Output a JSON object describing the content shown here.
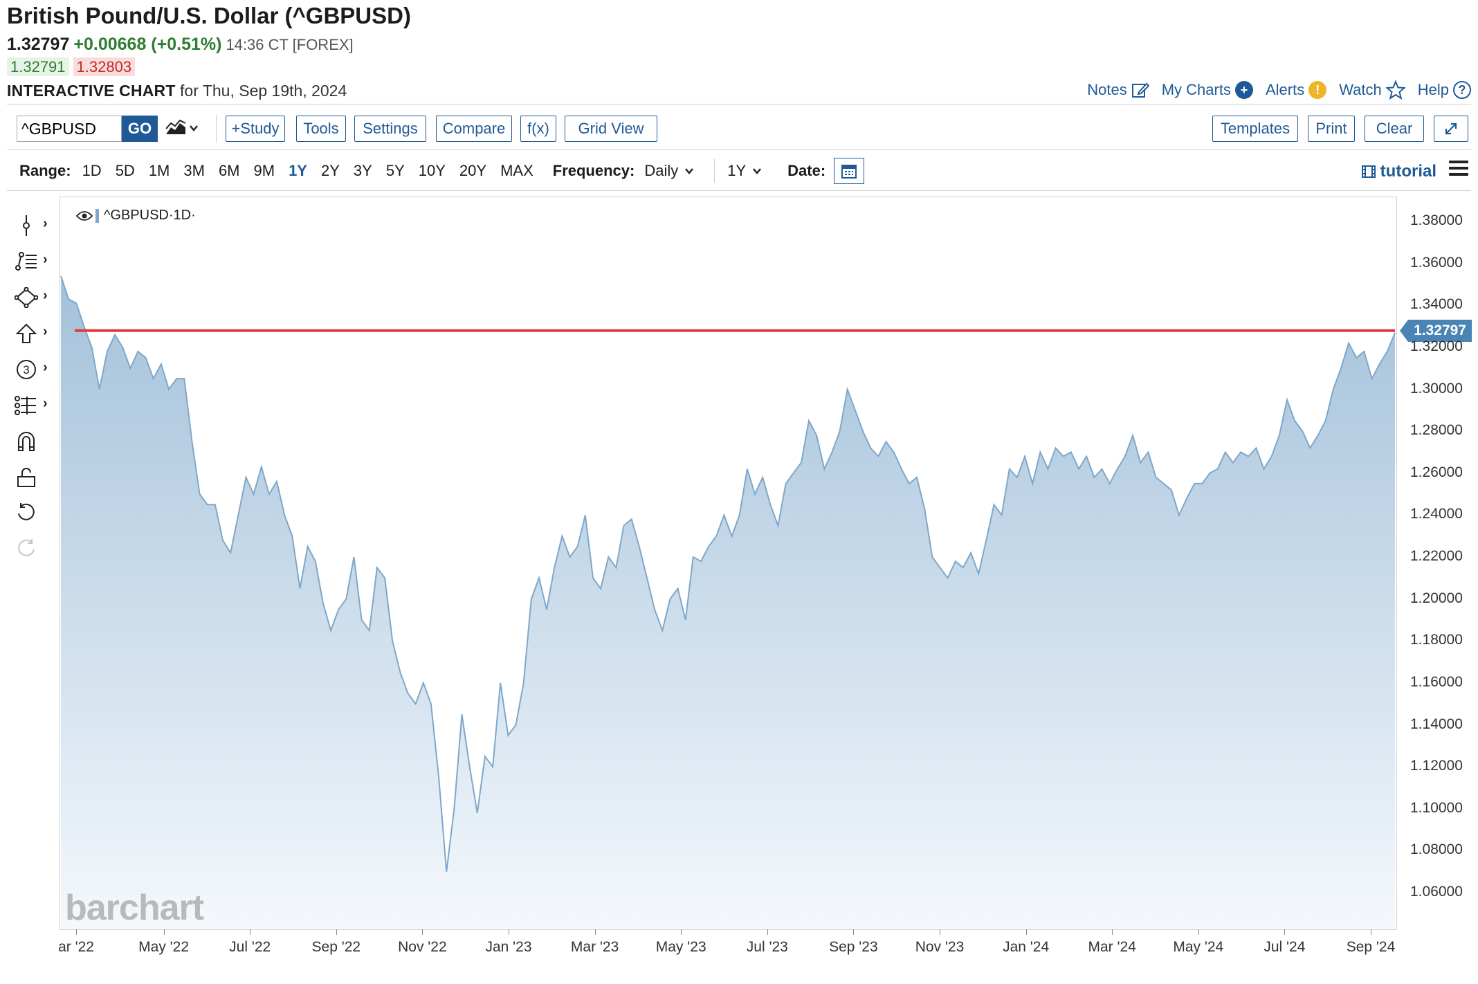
{
  "header": {
    "title": "British Pound/U.S. Dollar (^GBPUSD)",
    "last": "1.32797",
    "change": "+0.00668 (+0.51%)",
    "time": "14:36 CT [FOREX]",
    "bid": "1.32791",
    "ask": "1.32803",
    "chart_label": "INTERACTIVE CHART",
    "chart_date": "for Thu, Sep 19th, 2024"
  },
  "toplinks": {
    "notes": "Notes",
    "mycharts": "My Charts",
    "alerts": "Alerts",
    "watch": "Watch",
    "help": "Help"
  },
  "toolbar": {
    "symbol_value": "^GBPUSD",
    "go": "GO",
    "study": "+Study",
    "tools": "Tools",
    "settings": "Settings",
    "compare": "Compare",
    "fx": "f(x)",
    "grid": "Grid View",
    "templates": "Templates",
    "print": "Print",
    "clear": "Clear"
  },
  "range": {
    "label": "Range:",
    "options": [
      "1D",
      "5D",
      "1M",
      "3M",
      "6M",
      "9M",
      "1Y",
      "2Y",
      "3Y",
      "5Y",
      "10Y",
      "20Y",
      "MAX"
    ],
    "active": "1Y",
    "frequency_label": "Frequency:",
    "frequency_value": "Daily",
    "period_value": "1Y",
    "date_label": "Date:",
    "tutorial": "tutorial"
  },
  "colors": {
    "accent": "#1f5a96",
    "area_line": "#7ea7c9",
    "area_top": "#a3c1da",
    "area_bottom": "#f4f8fc",
    "price_line": "#e03a3e",
    "price_tag": "#4a84b5"
  },
  "chart_data": {
    "type": "area",
    "legend": "^GBPUSD·1D·",
    "watermark": "barchart",
    "current_price": 1.32797,
    "current_price_label": "1.32797",
    "ylim": [
      1.04,
      1.39
    ],
    "yticks": [
      "1.38000",
      "1.36000",
      "1.34000",
      "1.32000",
      "1.30000",
      "1.28000",
      "1.26000",
      "1.24000",
      "1.22000",
      "1.20000",
      "1.18000",
      "1.16000",
      "1.14000",
      "1.12000",
      "1.10000",
      "1.08000",
      "1.06000"
    ],
    "xticks": [
      "ar '22",
      "May '22",
      "Jul '22",
      "Sep '22",
      "Nov '22",
      "Jan '23",
      "Mar '23",
      "May '23",
      "Jul '23",
      "Sep '23",
      "Nov '23",
      "Jan '24",
      "Mar '24",
      "May '24",
      "Jul '24",
      "Sep '24"
    ],
    "series": [
      {
        "values": [
          1.354,
          1.343,
          1.341,
          1.33,
          1.32,
          1.3,
          1.318,
          1.326,
          1.32,
          1.31,
          1.318,
          1.315,
          1.305,
          1.312,
          1.3,
          1.305,
          1.305,
          1.275,
          1.25,
          1.245,
          1.245,
          1.228,
          1.222,
          1.24,
          1.258,
          1.25,
          1.263,
          1.25,
          1.256,
          1.24,
          1.23,
          1.205,
          1.225,
          1.218,
          1.198,
          1.185,
          1.195,
          1.2,
          1.22,
          1.19,
          1.185,
          1.215,
          1.21,
          1.18,
          1.165,
          1.155,
          1.15,
          1.16,
          1.15,
          1.115,
          1.07,
          1.1,
          1.145,
          1.12,
          1.098,
          1.125,
          1.12,
          1.16,
          1.135,
          1.14,
          1.16,
          1.2,
          1.21,
          1.195,
          1.215,
          1.23,
          1.22,
          1.225,
          1.24,
          1.21,
          1.205,
          1.22,
          1.215,
          1.235,
          1.238,
          1.225,
          1.21,
          1.195,
          1.185,
          1.2,
          1.205,
          1.19,
          1.22,
          1.218,
          1.225,
          1.23,
          1.24,
          1.23,
          1.24,
          1.262,
          1.25,
          1.258,
          1.245,
          1.235,
          1.255,
          1.26,
          1.265,
          1.285,
          1.278,
          1.262,
          1.27,
          1.28,
          1.3,
          1.29,
          1.28,
          1.272,
          1.268,
          1.275,
          1.27,
          1.262,
          1.255,
          1.258,
          1.243,
          1.22,
          1.215,
          1.21,
          1.218,
          1.215,
          1.222,
          1.212,
          1.228,
          1.245,
          1.24,
          1.262,
          1.258,
          1.268,
          1.255,
          1.27,
          1.262,
          1.272,
          1.268,
          1.27,
          1.262,
          1.268,
          1.258,
          1.262,
          1.255,
          1.262,
          1.268,
          1.278,
          1.265,
          1.27,
          1.258,
          1.255,
          1.252,
          1.24,
          1.248,
          1.255,
          1.255,
          1.26,
          1.262,
          1.27,
          1.265,
          1.27,
          1.268,
          1.272,
          1.262,
          1.268,
          1.278,
          1.295,
          1.285,
          1.28,
          1.272,
          1.278,
          1.285,
          1.3,
          1.31,
          1.322,
          1.315,
          1.318,
          1.305,
          1.312,
          1.318,
          1.327
        ]
      }
    ]
  }
}
